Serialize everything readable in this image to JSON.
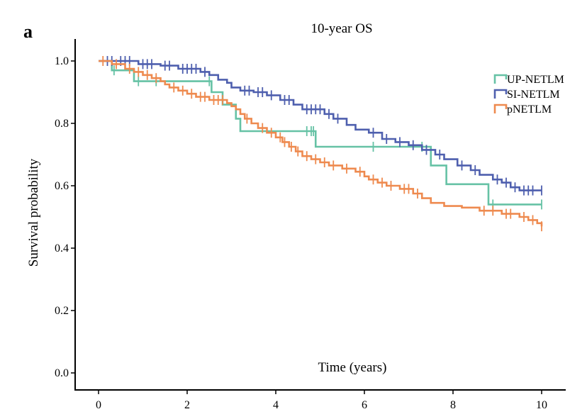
{
  "panel_letter": "a",
  "chart_data": {
    "type": "line",
    "subtype": "kaplan-meier",
    "title": "10-year OS",
    "xlabel": "Time (years)",
    "ylabel": "Survival probability",
    "xlim": [
      0,
      10
    ],
    "ylim": [
      0,
      1
    ],
    "xticks": [
      0,
      2,
      4,
      6,
      8,
      10
    ],
    "yticks": [
      0.0,
      0.2,
      0.4,
      0.6,
      0.8,
      1.0
    ],
    "ytick_labels": [
      "0.0",
      "0.2",
      "0.4",
      "0.6",
      "0.8",
      "1.0"
    ],
    "grid": false,
    "legend_position": "top-right",
    "series": [
      {
        "name": "UP-NETLM",
        "color": "#66c2a5",
        "steps": [
          [
            0,
            1.0
          ],
          [
            0.3,
            0.97
          ],
          [
            0.8,
            0.935
          ],
          [
            2.55,
            0.9
          ],
          [
            2.8,
            0.86
          ],
          [
            3.1,
            0.815
          ],
          [
            3.2,
            0.775
          ],
          [
            4.9,
            0.725
          ],
          [
            7.5,
            0.665
          ],
          [
            7.85,
            0.605
          ],
          [
            8.8,
            0.54
          ],
          [
            10,
            0.54
          ]
        ],
        "censors": [
          [
            0.35,
            0.97
          ],
          [
            0.9,
            0.935
          ],
          [
            1.3,
            0.935
          ],
          [
            2.5,
            0.935
          ],
          [
            4.7,
            0.775
          ],
          [
            4.8,
            0.775
          ],
          [
            4.85,
            0.775
          ],
          [
            6.2,
            0.725
          ],
          [
            7.3,
            0.725
          ],
          [
            8.9,
            0.54
          ],
          [
            10,
            0.54
          ]
        ]
      },
      {
        "name": "SI-NETLM",
        "color": "#4e5fae",
        "steps": [
          [
            0,
            1.0
          ],
          [
            0.9,
            0.99
          ],
          [
            1.4,
            0.985
          ],
          [
            1.8,
            0.975
          ],
          [
            2.3,
            0.965
          ],
          [
            2.5,
            0.955
          ],
          [
            2.7,
            0.94
          ],
          [
            2.9,
            0.93
          ],
          [
            3.0,
            0.915
          ],
          [
            3.2,
            0.905
          ],
          [
            3.5,
            0.9
          ],
          [
            3.8,
            0.89
          ],
          [
            4.1,
            0.875
          ],
          [
            4.4,
            0.86
          ],
          [
            4.6,
            0.845
          ],
          [
            5.1,
            0.83
          ],
          [
            5.3,
            0.815
          ],
          [
            5.6,
            0.795
          ],
          [
            5.8,
            0.78
          ],
          [
            6.1,
            0.77
          ],
          [
            6.4,
            0.75
          ],
          [
            6.7,
            0.74
          ],
          [
            7.0,
            0.73
          ],
          [
            7.3,
            0.715
          ],
          [
            7.6,
            0.7
          ],
          [
            7.8,
            0.685
          ],
          [
            8.1,
            0.665
          ],
          [
            8.4,
            0.65
          ],
          [
            8.6,
            0.635
          ],
          [
            8.9,
            0.62
          ],
          [
            9.1,
            0.61
          ],
          [
            9.3,
            0.595
          ],
          [
            9.5,
            0.585
          ],
          [
            10,
            0.585
          ]
        ],
        "censors": [
          [
            0.2,
            1.0
          ],
          [
            0.3,
            1.0
          ],
          [
            0.5,
            1.0
          ],
          [
            0.6,
            1.0
          ],
          [
            0.7,
            1.0
          ],
          [
            1.0,
            0.99
          ],
          [
            1.1,
            0.99
          ],
          [
            1.2,
            0.99
          ],
          [
            1.5,
            0.985
          ],
          [
            1.6,
            0.985
          ],
          [
            1.9,
            0.975
          ],
          [
            2.0,
            0.975
          ],
          [
            2.1,
            0.975
          ],
          [
            2.2,
            0.975
          ],
          [
            2.4,
            0.965
          ],
          [
            3.3,
            0.905
          ],
          [
            3.4,
            0.905
          ],
          [
            3.6,
            0.9
          ],
          [
            3.7,
            0.9
          ],
          [
            3.9,
            0.89
          ],
          [
            4.2,
            0.875
          ],
          [
            4.3,
            0.875
          ],
          [
            4.7,
            0.845
          ],
          [
            4.8,
            0.845
          ],
          [
            4.9,
            0.845
          ],
          [
            5.0,
            0.845
          ],
          [
            5.2,
            0.83
          ],
          [
            5.4,
            0.815
          ],
          [
            6.2,
            0.77
          ],
          [
            6.5,
            0.75
          ],
          [
            6.8,
            0.74
          ],
          [
            7.1,
            0.73
          ],
          [
            7.4,
            0.715
          ],
          [
            7.7,
            0.7
          ],
          [
            8.2,
            0.665
          ],
          [
            8.5,
            0.65
          ],
          [
            9.0,
            0.62
          ],
          [
            9.2,
            0.61
          ],
          [
            9.4,
            0.595
          ],
          [
            9.6,
            0.585
          ],
          [
            9.7,
            0.585
          ],
          [
            9.8,
            0.585
          ],
          [
            10,
            0.585
          ]
        ]
      },
      {
        "name": "pNETLM",
        "color": "#ee8a4f",
        "steps": [
          [
            0,
            1.0
          ],
          [
            0.3,
            0.99
          ],
          [
            0.6,
            0.975
          ],
          [
            0.8,
            0.965
          ],
          [
            1.0,
            0.955
          ],
          [
            1.2,
            0.945
          ],
          [
            1.4,
            0.935
          ],
          [
            1.5,
            0.925
          ],
          [
            1.6,
            0.915
          ],
          [
            1.8,
            0.905
          ],
          [
            2.0,
            0.895
          ],
          [
            2.2,
            0.885
          ],
          [
            2.5,
            0.875
          ],
          [
            2.9,
            0.865
          ],
          [
            3.0,
            0.855
          ],
          [
            3.1,
            0.845
          ],
          [
            3.2,
            0.83
          ],
          [
            3.3,
            0.815
          ],
          [
            3.45,
            0.8
          ],
          [
            3.6,
            0.785
          ],
          [
            3.8,
            0.77
          ],
          [
            4.0,
            0.755
          ],
          [
            4.15,
            0.74
          ],
          [
            4.3,
            0.725
          ],
          [
            4.45,
            0.71
          ],
          [
            4.6,
            0.695
          ],
          [
            4.8,
            0.685
          ],
          [
            5.0,
            0.675
          ],
          [
            5.2,
            0.665
          ],
          [
            5.5,
            0.655
          ],
          [
            5.8,
            0.645
          ],
          [
            6.0,
            0.63
          ],
          [
            6.1,
            0.62
          ],
          [
            6.3,
            0.61
          ],
          [
            6.5,
            0.6
          ],
          [
            6.8,
            0.59
          ],
          [
            7.1,
            0.575
          ],
          [
            7.3,
            0.56
          ],
          [
            7.5,
            0.545
          ],
          [
            7.8,
            0.535
          ],
          [
            8.2,
            0.53
          ],
          [
            8.6,
            0.52
          ],
          [
            9.1,
            0.51
          ],
          [
            9.5,
            0.5
          ],
          [
            9.7,
            0.49
          ],
          [
            9.9,
            0.48
          ],
          [
            10,
            0.47
          ]
        ],
        "censors": [
          [
            0.1,
            1.0
          ],
          [
            0.4,
            0.99
          ],
          [
            0.7,
            0.975
          ],
          [
            0.9,
            0.965
          ],
          [
            1.1,
            0.955
          ],
          [
            1.3,
            0.945
          ],
          [
            1.7,
            0.915
          ],
          [
            1.9,
            0.905
          ],
          [
            2.1,
            0.895
          ],
          [
            2.3,
            0.885
          ],
          [
            2.4,
            0.885
          ],
          [
            2.6,
            0.875
          ],
          [
            2.7,
            0.875
          ],
          [
            2.8,
            0.875
          ],
          [
            3.35,
            0.815
          ],
          [
            3.7,
            0.785
          ],
          [
            3.9,
            0.77
          ],
          [
            4.1,
            0.755
          ],
          [
            4.2,
            0.74
          ],
          [
            4.35,
            0.725
          ],
          [
            4.5,
            0.71
          ],
          [
            4.7,
            0.695
          ],
          [
            4.9,
            0.685
          ],
          [
            5.1,
            0.675
          ],
          [
            5.3,
            0.665
          ],
          [
            5.6,
            0.655
          ],
          [
            5.9,
            0.645
          ],
          [
            6.2,
            0.62
          ],
          [
            6.4,
            0.61
          ],
          [
            6.6,
            0.6
          ],
          [
            6.9,
            0.59
          ],
          [
            7.0,
            0.59
          ],
          [
            7.2,
            0.575
          ],
          [
            8.7,
            0.52
          ],
          [
            8.9,
            0.52
          ],
          [
            9.2,
            0.51
          ],
          [
            9.3,
            0.51
          ],
          [
            9.6,
            0.5
          ],
          [
            9.8,
            0.49
          ],
          [
            10,
            0.47
          ]
        ]
      }
    ]
  }
}
